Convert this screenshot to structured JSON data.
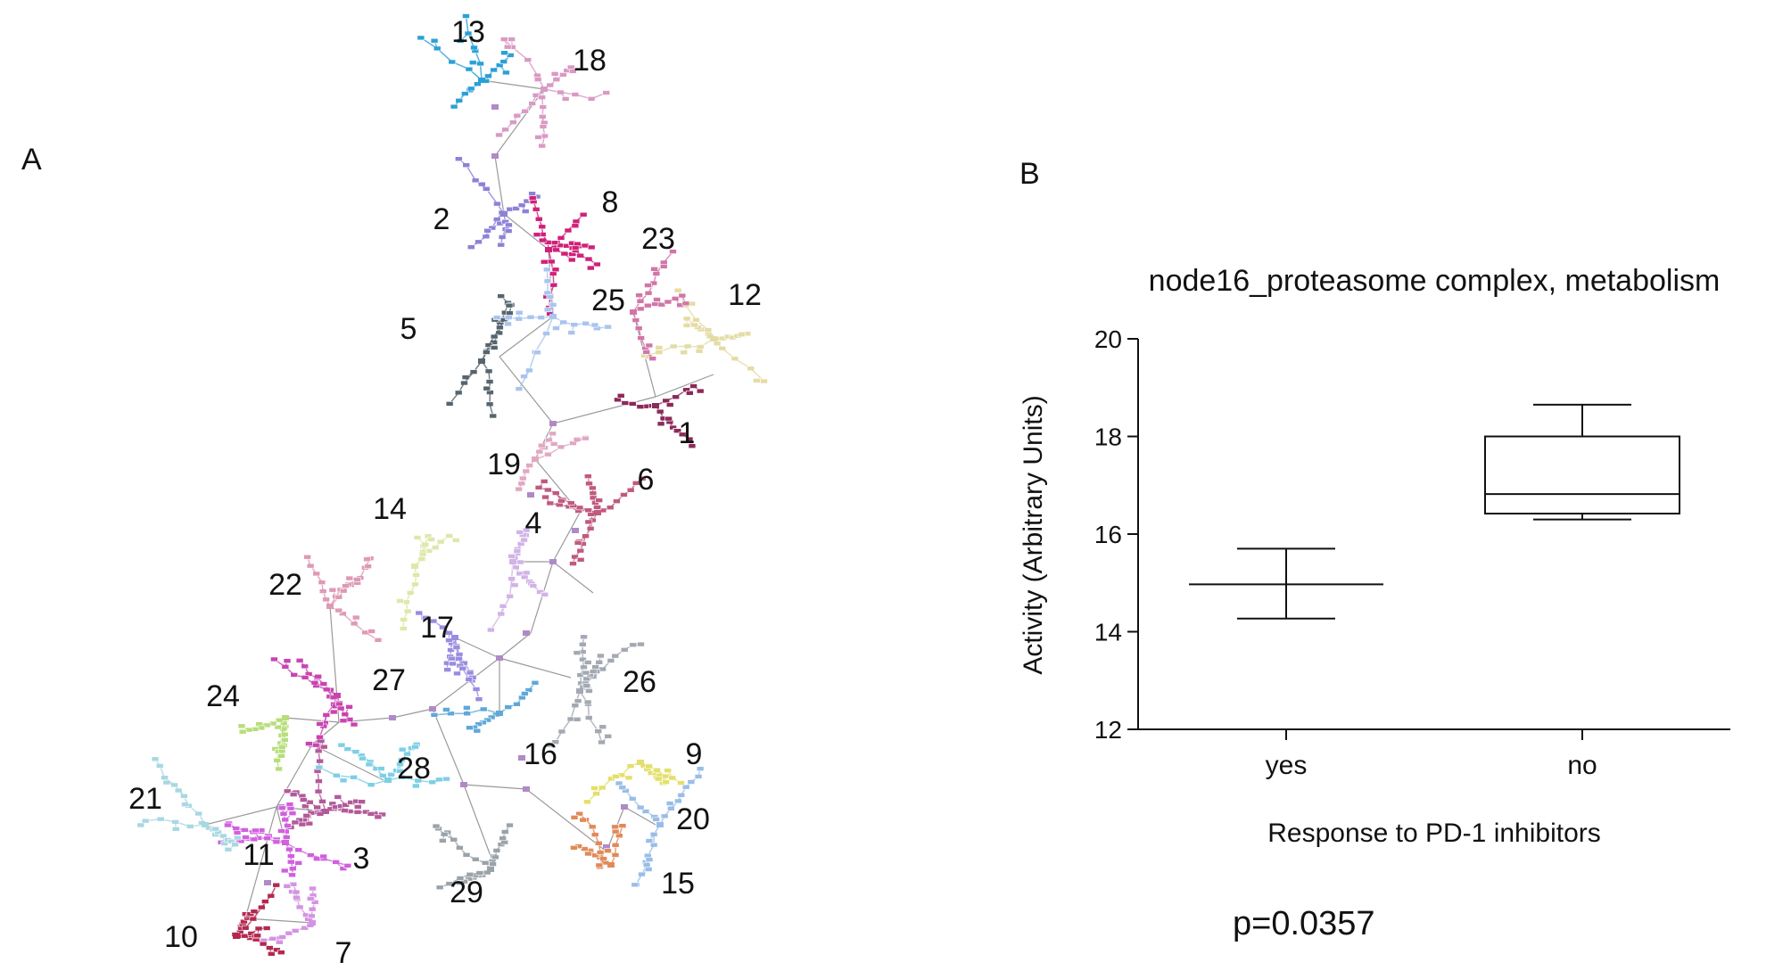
{
  "panels": {
    "a_label": "A",
    "b_label": "B"
  },
  "colors": {
    "edge": "#9a9a9a",
    "axis": "#111111",
    "clusters": {
      "1": "#8b2a5a",
      "2": "#8c82d6",
      "3": "#b25a9a",
      "4": "#d2b3e6",
      "5": "#56646e",
      "6": "#c05a80",
      "7": "#d493e2",
      "8": "#d0217a",
      "9": "#e4df6a",
      "10": "#b32850",
      "11": "#d060dd",
      "12": "#e4dca5",
      "13": "#2ba0d6",
      "14": "#dfe7aa",
      "15": "#e08a5a",
      "16": "#5fa8d8",
      "17": "#9a8ce0",
      "18": "#d99ac4",
      "19": "#e0a8c2",
      "20": "#9abde8",
      "21": "#a8d8e2",
      "22": "#df99b6",
      "23": "#d176a8",
      "24": "#b6de7a",
      "25": "#a9c4ee",
      "26": "#a3a9b3",
      "27": "#c944b0",
      "28": "#7dcfe5",
      "29": "#9aa3a9"
    }
  },
  "network": {
    "cluster_labels": [
      "1",
      "2",
      "3",
      "4",
      "5",
      "6",
      "7",
      "8",
      "9",
      "10",
      "11",
      "12",
      "13",
      "14",
      "15",
      "16",
      "17",
      "18",
      "19",
      "20",
      "21",
      "22",
      "23",
      "24",
      "25",
      "26",
      "27",
      "28",
      "29"
    ]
  },
  "chart_data": {
    "type": "boxplot",
    "title": "node16_proteasome complex, metabolism",
    "xlabel": "Response to PD-1 inhibitors",
    "ylabel": "Activity (Arbitrary Units)",
    "categories": [
      "yes",
      "no"
    ],
    "ylim": [
      12,
      20
    ],
    "yticks": [
      12,
      14,
      16,
      18,
      20
    ],
    "boxes": [
      {
        "category": "yes",
        "min": 14.27,
        "q1": 14.97,
        "median": 14.97,
        "q3": 14.97,
        "max": 15.7
      },
      {
        "category": "no",
        "min": 16.3,
        "q1": 16.42,
        "median": 16.82,
        "q3": 18.0,
        "max": 18.65
      }
    ],
    "annotation": "p=0.0357"
  }
}
